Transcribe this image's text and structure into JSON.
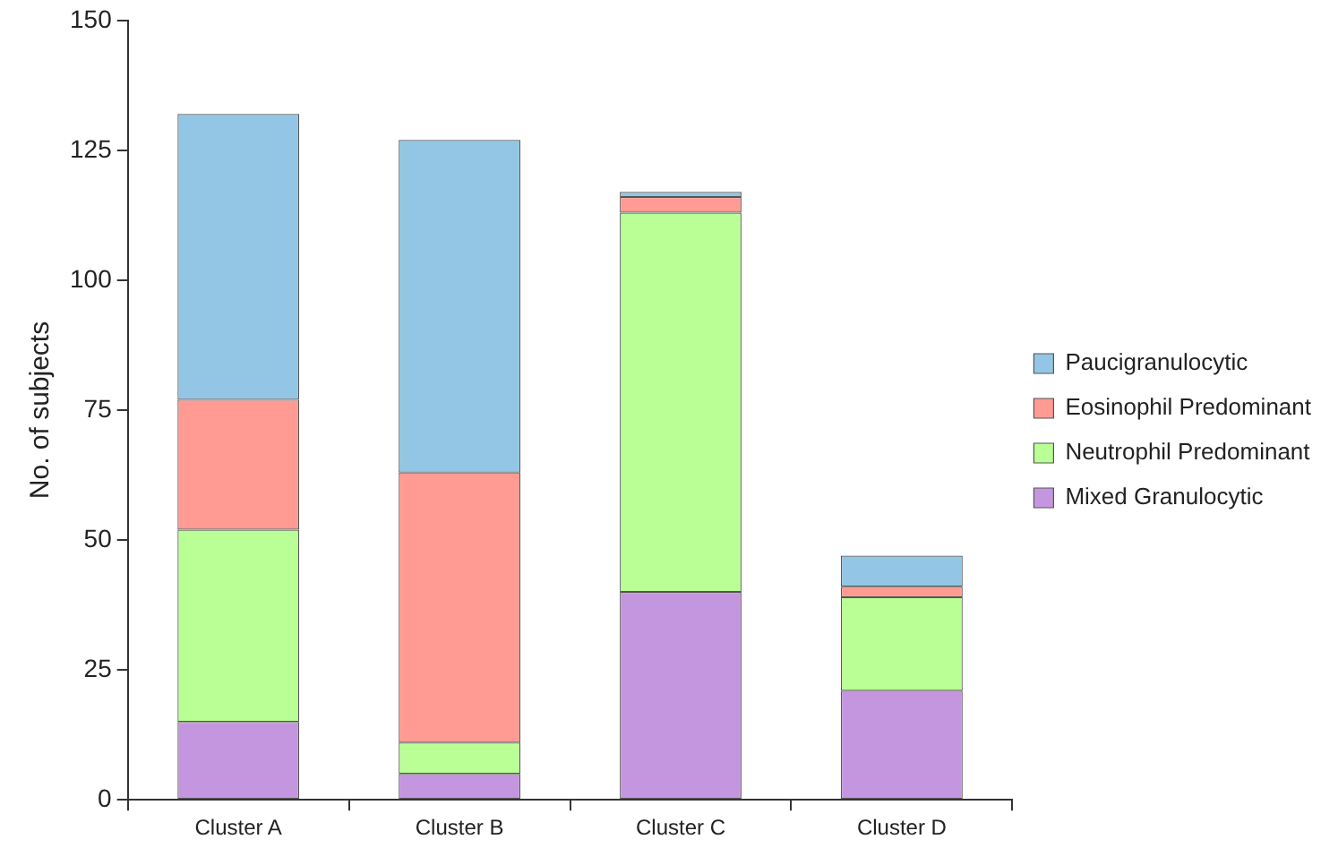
{
  "chart_data": {
    "type": "bar",
    "stacked": true,
    "ylabel": "No. of subjects",
    "categories": [
      "Cluster A",
      "Cluster B",
      "Cluster C",
      "Cluster D"
    ],
    "series": [
      {
        "name": "Mixed Granulocytic",
        "color": "#c596e0",
        "values": [
          15,
          5,
          40,
          21
        ]
      },
      {
        "name": "Neutrophil Predominant",
        "color": "#b9ff95",
        "values": [
          37,
          6,
          73,
          18
        ]
      },
      {
        "name": "Eosinophil Predominant",
        "color": "#ff9b93",
        "values": [
          25,
          52,
          3,
          2
        ]
      },
      {
        "name": "Paucigranulocytic",
        "color": "#93c6e4",
        "values": [
          55,
          64,
          1,
          6
        ]
      }
    ],
    "ylim": [
      0,
      150
    ],
    "yticks": [
      0,
      25,
      50,
      75,
      100,
      125,
      150
    ],
    "grid": false,
    "legend": "right"
  }
}
